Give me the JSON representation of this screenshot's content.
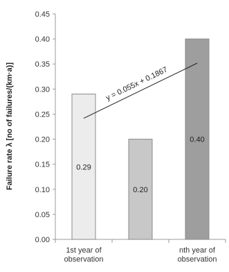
{
  "chart_data": {
    "type": "bar",
    "title": "",
    "xlabel": "",
    "ylabel": "Failure rate λ [no of failures/(km·a)]",
    "ylim": [
      0,
      0.45
    ],
    "yticks": [
      "0.00",
      "0.05",
      "0.10",
      "0.15",
      "0.20",
      "0.25",
      "0.30",
      "0.35",
      "0.40",
      "0.45"
    ],
    "grid": false,
    "categories": [
      [
        "1st year of",
        "observation"
      ],
      [
        "",
        ""
      ],
      [
        "nth year of",
        "observation"
      ]
    ],
    "values": [
      0.29,
      0.2,
      0.4
    ],
    "data_labels": [
      "0.29",
      "0.20",
      "0.40"
    ],
    "bar_colors": [
      "#ececec",
      "#c8c8c8",
      "#9e9e9e"
    ],
    "trendline": {
      "type": "linear",
      "slope": 0.055,
      "intercept": 0.1867,
      "equation": "y = 0.055x + 0.1867",
      "color": "#222222"
    }
  }
}
